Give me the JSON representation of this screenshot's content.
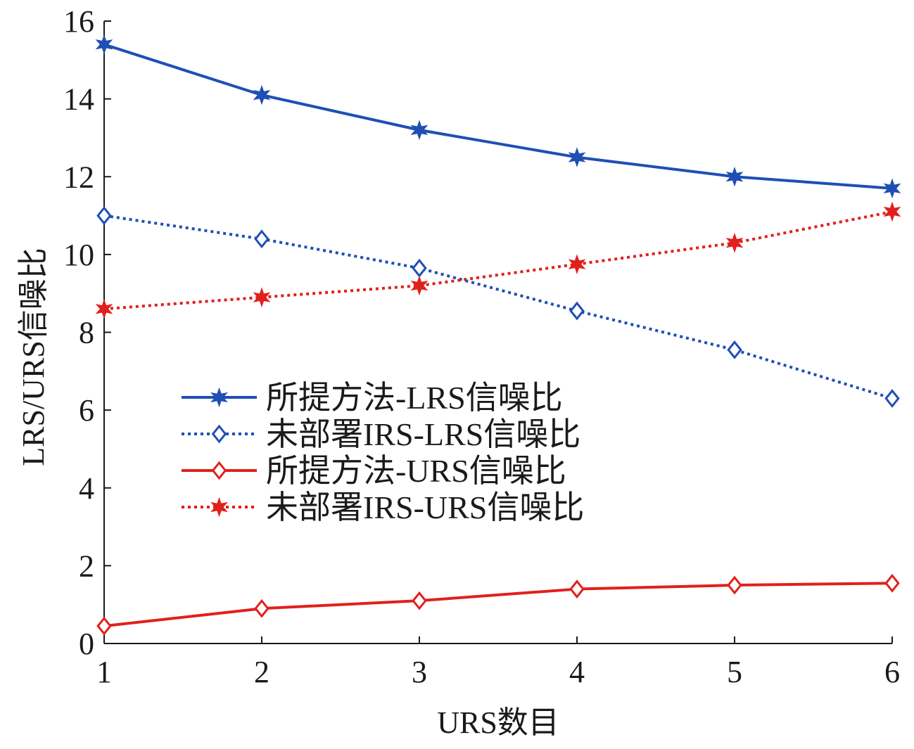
{
  "chart_data": {
    "type": "line",
    "xlabel": "URS数目",
    "ylabel": "LRS/URS信噪比",
    "xlim": [
      1,
      6
    ],
    "ylim": [
      0,
      16
    ],
    "x": [
      1,
      2,
      3,
      4,
      5,
      6
    ],
    "xticks": [
      "1",
      "2",
      "3",
      "4",
      "5",
      "6"
    ],
    "yticks": [
      "0",
      "2",
      "4",
      "6",
      "8",
      "10",
      "12",
      "14",
      "16"
    ],
    "grid": false,
    "legend_position": "center-left",
    "series": [
      {
        "name": "所提方法-LRS信噪比",
        "values": [
          15.4,
          14.1,
          13.2,
          12.5,
          12.0,
          11.7
        ],
        "color": "#1f4fb5",
        "line_style": "solid",
        "marker": "star"
      },
      {
        "name": "未部署IRS-LRS信噪比",
        "values": [
          11.0,
          10.4,
          9.65,
          8.55,
          7.55,
          6.3
        ],
        "color": "#1f4fb5",
        "line_style": "dotted",
        "marker": "diamond"
      },
      {
        "name": "所提方法-URS信噪比",
        "values": [
          0.45,
          0.9,
          1.1,
          1.4,
          1.5,
          1.55
        ],
        "color": "#e0201c",
        "line_style": "solid",
        "marker": "diamond"
      },
      {
        "name": "未部署IRS-URS信噪比",
        "values": [
          8.6,
          8.9,
          9.2,
          9.75,
          10.3,
          11.1
        ],
        "color": "#e0201c",
        "line_style": "dotted",
        "marker": "star"
      }
    ]
  }
}
